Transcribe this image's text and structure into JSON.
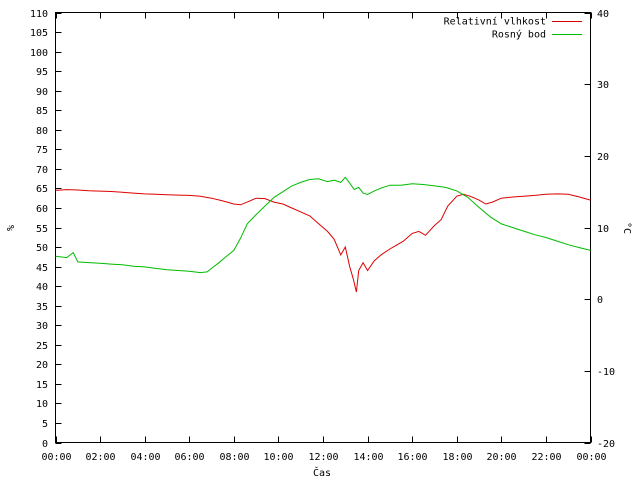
{
  "chart_data": {
    "type": "line",
    "xlabel": "Čas",
    "ylabel_left": "%",
    "ylabel_right": "°C",
    "xlim": [
      0,
      24
    ],
    "ylim_left": [
      0,
      110
    ],
    "ylim_right": [
      -20,
      40
    ],
    "x_ticks": [
      "00:00",
      "02:00",
      "04:00",
      "06:00",
      "08:00",
      "10:00",
      "12:00",
      "14:00",
      "16:00",
      "18:00",
      "20:00",
      "22:00",
      "00:00"
    ],
    "y_ticks_left": [
      0,
      5,
      10,
      15,
      20,
      25,
      30,
      35,
      40,
      45,
      50,
      55,
      60,
      65,
      70,
      75,
      80,
      85,
      90,
      95,
      100,
      105,
      110
    ],
    "y_ticks_right": [
      -20,
      -10,
      0,
      10,
      20,
      30,
      40
    ],
    "legend_position": "top-right",
    "grid": false,
    "series": [
      {
        "name": "Relativní vlhkost",
        "axis": "left",
        "color": "#dd0000",
        "x": [
          0,
          0.5,
          1,
          1.5,
          2,
          2.5,
          3,
          3.5,
          4,
          4.5,
          5,
          5.5,
          6,
          6.5,
          7,
          7.5,
          8,
          8.3,
          8.6,
          9,
          9.4,
          9.8,
          10.2,
          10.6,
          11,
          11.4,
          11.8,
          12.2,
          12.5,
          12.8,
          13,
          13.2,
          13.35,
          13.5,
          13.6,
          13.8,
          14,
          14.3,
          14.6,
          15,
          15.3,
          15.6,
          16,
          16.3,
          16.6,
          17,
          17.3,
          17.6,
          18,
          18.3,
          18.6,
          19,
          19.3,
          19.6,
          20,
          20.5,
          21,
          21.5,
          22,
          22.5,
          23,
          23.5,
          24
        ],
        "values": [
          64.5,
          64.7,
          64.6,
          64.4,
          64.3,
          64.2,
          64,
          63.8,
          63.6,
          63.5,
          63.4,
          63.3,
          63.2,
          63,
          62.5,
          61.8,
          61,
          60.8,
          61.5,
          62.5,
          62.4,
          61.5,
          61,
          60,
          59,
          58,
          56,
          54,
          52,
          48,
          50,
          45,
          42,
          38.5,
          44,
          46,
          44,
          46.5,
          48,
          49.5,
          50.5,
          51.5,
          53.5,
          54,
          53,
          55.5,
          57,
          60.5,
          63,
          63.5,
          63,
          62,
          61,
          61.5,
          62.5,
          62.8,
          63,
          63.2,
          63.5,
          63.6,
          63.5,
          62.8,
          62
        ]
      },
      {
        "name": "Rosný bod",
        "axis": "right",
        "color": "#00bb00",
        "x": [
          0,
          0.5,
          0.8,
          1,
          1.5,
          2,
          2.5,
          3,
          3.5,
          4,
          4.5,
          5,
          5.5,
          6,
          6.5,
          6.8,
          7,
          7.3,
          7.6,
          8,
          8.3,
          8.6,
          9,
          9.4,
          9.8,
          10.2,
          10.6,
          11,
          11.4,
          11.8,
          12.2,
          12.5,
          12.8,
          13,
          13.2,
          13.4,
          13.6,
          13.8,
          14,
          14.3,
          14.6,
          15,
          15.5,
          16,
          16.5,
          17,
          17.5,
          18,
          18.5,
          19,
          19.5,
          20,
          20.5,
          21,
          21.5,
          22,
          22.5,
          23,
          23.5,
          24
        ],
        "values": [
          6,
          5.8,
          6.5,
          5.2,
          5.1,
          5.0,
          4.9,
          4.8,
          4.6,
          4.5,
          4.3,
          4.1,
          4.0,
          3.9,
          3.7,
          3.8,
          4.3,
          5.0,
          5.8,
          6.8,
          8.5,
          10.5,
          11.8,
          13,
          14.2,
          15,
          15.8,
          16.3,
          16.7,
          16.8,
          16.4,
          16.6,
          16.3,
          17,
          16.2,
          15.3,
          15.6,
          14.8,
          14.6,
          15.1,
          15.5,
          15.9,
          15.9,
          16.1,
          16.0,
          15.8,
          15.6,
          15.1,
          14.2,
          12.8,
          11.5,
          10.5,
          10.0,
          9.5,
          9.0,
          8.6,
          8.1,
          7.6,
          7.2,
          6.8
        ]
      }
    ]
  }
}
